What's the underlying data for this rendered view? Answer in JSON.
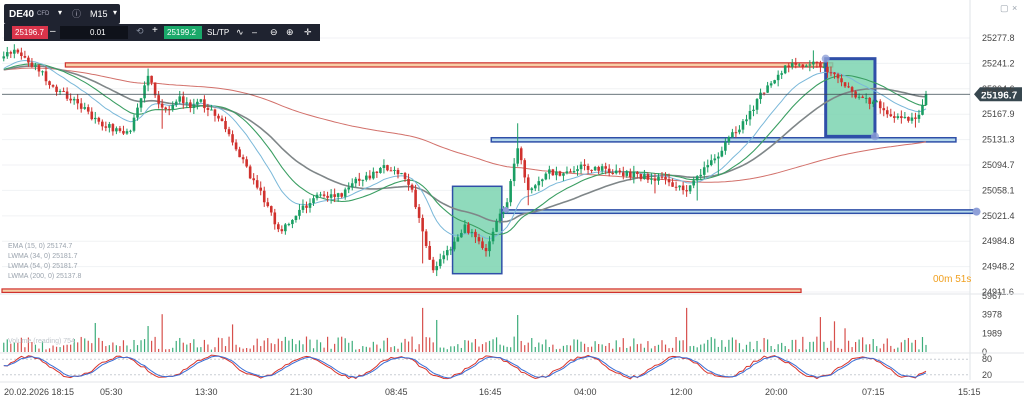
{
  "header": {
    "symbol": "DE40",
    "cfd_tag": "CFD",
    "timeframe": "M15",
    "sell_price": "25196.7",
    "quantity": "0.01",
    "buy_price": "25199.2",
    "sltp": "SL/TP"
  },
  "countdown": "00m 51s",
  "legend": [
    "EMA (15, 0) 25174.7",
    "LWMA (34, 0) 25181.7",
    "LWMA (54, 0) 25181.7",
    "LWMA (200, 0) 25137.8",
    "Volume (reading) 754"
  ],
  "colors": {
    "up": "#1a9e63",
    "down": "#d0312d",
    "ema": "#7ab8d9",
    "lwma34": "#3a9e62",
    "lwma54": "#7f8688",
    "lwma200": "#d2706a",
    "zone_blue": "#2f4fa8",
    "zone_green": "#7bd3b0",
    "zone_red": "#d0312d",
    "zone_orange": "#f0a860",
    "price_line": "#37474f"
  },
  "chart_data": {
    "type": "candlestick",
    "instrument": "DE40",
    "timeframe": "M15",
    "y_axis": {
      "ticks": [
        25277.8,
        25241.2,
        25204.6,
        25167.9,
        25131.3,
        25094.7,
        25058.1,
        25021.4,
        24984.8,
        24948.2,
        24911.6
      ],
      "current_price": 25196.7
    },
    "x_axis": {
      "ticks": [
        "20.02.2026 18:15",
        "05:30",
        "13:30",
        "21:30",
        "08:45",
        "16:45",
        "04:00",
        "12:00",
        "20:00",
        "07:15",
        "15:15"
      ]
    },
    "price_path": [
      [
        0,
        25255
      ],
      [
        3,
        25262
      ],
      [
        6,
        25250
      ],
      [
        10,
        25232
      ],
      [
        14,
        25205
      ],
      [
        19,
        25190
      ],
      [
        23,
        25175
      ],
      [
        26,
        25160
      ],
      [
        30,
        25150
      ],
      [
        33,
        25140
      ],
      [
        36,
        25148
      ],
      [
        39,
        25190
      ],
      [
        41,
        25225
      ],
      [
        44,
        25185
      ],
      [
        47,
        25175
      ],
      [
        50,
        25192
      ],
      [
        53,
        25175
      ],
      [
        56,
        25185
      ],
      [
        59,
        25172
      ],
      [
        62,
        25155
      ],
      [
        66,
        25120
      ],
      [
        70,
        25080
      ],
      [
        74,
        25045
      ],
      [
        78,
        25000
      ],
      [
        81,
        25012
      ],
      [
        85,
        25032
      ],
      [
        89,
        25050
      ],
      [
        93,
        25048
      ],
      [
        97,
        25055
      ],
      [
        100,
        25072
      ],
      [
        104,
        25078
      ],
      [
        108,
        25090
      ],
      [
        112,
        25085
      ],
      [
        116,
        25060
      ],
      [
        119,
        24995
      ],
      [
        122,
        24945
      ],
      [
        125,
        24960
      ],
      [
        128,
        24985
      ],
      [
        131,
        25005
      ],
      [
        134,
        24990
      ],
      [
        137,
        24975
      ],
      [
        140,
        25010
      ],
      [
        143,
        25040
      ],
      [
        146,
        25120
      ],
      [
        149,
        25055
      ],
      [
        152,
        25075
      ],
      [
        155,
        25085
      ],
      [
        158,
        25080
      ],
      [
        161,
        25088
      ],
      [
        164,
        25092
      ],
      [
        167,
        25090
      ],
      [
        170,
        25088
      ],
      [
        173,
        25083
      ],
      [
        176,
        25080
      ],
      [
        179,
        25082
      ],
      [
        182,
        25078
      ],
      [
        185,
        25075
      ],
      [
        188,
        25072
      ],
      [
        191,
        25065
      ],
      [
        194,
        25060
      ],
      [
        197,
        25080
      ],
      [
        200,
        25095
      ],
      [
        203,
        25110
      ],
      [
        206,
        25135
      ],
      [
        209,
        25150
      ],
      [
        212,
        25168
      ],
      [
        215,
        25198
      ],
      [
        218,
        25215
      ],
      [
        221,
        25232
      ],
      [
        224,
        25240
      ],
      [
        227,
        25238
      ],
      [
        230,
        25245
      ],
      [
        233,
        25236
      ],
      [
        236,
        25225
      ],
      [
        239,
        25210
      ],
      [
        242,
        25195
      ],
      [
        245,
        25188
      ],
      [
        248,
        25184
      ],
      [
        251,
        25172
      ],
      [
        254,
        25165
      ],
      [
        257,
        25158
      ],
      [
        260,
        25166
      ],
      [
        262,
        25196
      ]
    ],
    "zones": [
      {
        "kind": "resistance",
        "color": "red",
        "y_top": 25242,
        "y_bottom": 25236,
        "x_start": 18,
        "x_end": 236
      },
      {
        "kind": "support",
        "color": "red",
        "y_top": 24916,
        "y_bottom": 24911,
        "x_start": 0,
        "x_end": 227
      },
      {
        "kind": "support",
        "color": "blue",
        "y_top": 25134,
        "y_bottom": 25128,
        "x_start": 139,
        "x_end": 271
      },
      {
        "kind": "support",
        "color": "blue",
        "y_top": 25030,
        "y_bottom": 25025,
        "x_start": 142,
        "x_end": 276
      },
      {
        "kind": "demand",
        "color": "green",
        "y_top": 25064,
        "y_bottom": 24938,
        "x_start": 128,
        "x_end": 142
      },
      {
        "kind": "supply",
        "color": "green",
        "y_top": 25248,
        "y_bottom": 25136,
        "x_start": 234,
        "x_end": 248
      }
    ],
    "indicators": [
      {
        "name": "EMA (15, 0)",
        "value": 25174.7
      },
      {
        "name": "LWMA (34, 0)",
        "value": 25181.7
      },
      {
        "name": "LWMA (54, 0)",
        "value": 25181.7
      },
      {
        "name": "LWMA (200, 0)",
        "value": 25137.8
      }
    ],
    "volume": {
      "ticks": [
        5967,
        3978,
        1989,
        0
      ],
      "last": 754
    },
    "oscillator": {
      "levels": [
        80,
        20
      ]
    }
  }
}
